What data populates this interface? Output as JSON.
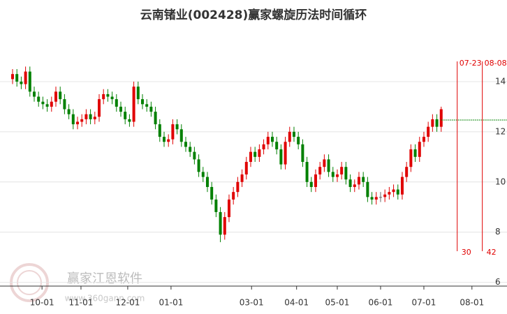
{
  "chart_data": {
    "type": "candlestick",
    "title": "云南锗业(002428)赢家螺旋历法时间循环",
    "xlim": [
      0,
      114.2
    ],
    "ylim": [
      5.85,
      15.0
    ],
    "yticks": [
      6,
      8,
      10,
      12,
      14
    ],
    "xticks": [
      {
        "value": 6.8,
        "label": "10-01"
      },
      {
        "value": 15.8,
        "label": "11-01"
      },
      {
        "value": 26.6,
        "label": "12-01"
      },
      {
        "value": 36.6,
        "label": "01-01"
      },
      {
        "value": 55.2,
        "label": "03-01"
      },
      {
        "value": 65.6,
        "label": "04-01"
      },
      {
        "value": 75,
        "label": "05-01"
      },
      {
        "value": 85,
        "label": "06-01"
      },
      {
        "value": 95,
        "label": "07-01"
      },
      {
        "value": 106.1,
        "label": "08-01"
      }
    ],
    "grid": true,
    "up_color": "#e00000",
    "down_color": "#008000",
    "open": [
      14.1,
      14.3,
      14.0,
      13.9,
      14.4,
      13.6,
      13.4,
      13.2,
      13.1,
      13.0,
      13.2,
      13.6,
      13.3,
      12.9,
      12.7,
      12.3,
      12.4,
      12.5,
      12.7,
      12.5,
      12.6,
      13.3,
      13.5,
      13.4,
      13.3,
      13.0,
      12.8,
      12.5,
      12.4,
      13.8,
      13.3,
      13.1,
      13.0,
      12.8,
      12.3,
      11.8,
      11.6,
      11.7,
      12.3,
      12.1,
      11.6,
      11.4,
      11.2,
      10.9,
      10.4,
      10.2,
      9.8,
      9.3,
      8.8,
      7.9,
      8.6,
      9.3,
      9.6,
      10.0,
      10.3,
      10.8,
      11.2,
      11.0,
      11.3,
      11.5,
      11.8,
      11.6,
      11.3,
      10.7,
      11.6,
      12.0,
      11.8,
      11.5,
      10.8,
      10.0,
      9.8,
      10.3,
      10.6,
      10.9,
      10.4,
      10.2,
      10.3,
      10.6,
      10.1,
      9.8,
      9.9,
      10.2,
      10.0,
      9.4,
      9.3,
      9.4,
      9.4,
      9.5,
      9.6,
      9.7,
      9.5,
      10.2,
      10.6,
      11.3,
      11.0,
      11.6,
      11.8,
      12.2,
      12.5,
      12.2
    ],
    "close": [
      14.3,
      14.0,
      13.9,
      14.4,
      13.6,
      13.4,
      13.2,
      13.1,
      13.0,
      13.2,
      13.6,
      13.3,
      12.9,
      12.7,
      12.3,
      12.4,
      12.5,
      12.7,
      12.5,
      12.6,
      13.3,
      13.5,
      13.4,
      13.3,
      13.0,
      12.8,
      12.5,
      12.4,
      13.8,
      13.3,
      13.1,
      13.0,
      12.8,
      12.3,
      11.8,
      11.6,
      11.7,
      12.3,
      12.1,
      11.6,
      11.4,
      11.2,
      10.9,
      10.4,
      10.2,
      9.8,
      9.3,
      8.8,
      7.9,
      8.6,
      9.3,
      9.6,
      10.0,
      10.3,
      10.8,
      11.2,
      11.0,
      11.3,
      11.5,
      11.8,
      11.6,
      11.3,
      10.7,
      11.6,
      12.0,
      11.8,
      11.5,
      10.8,
      10.0,
      9.8,
      10.3,
      10.6,
      10.9,
      10.4,
      10.2,
      10.3,
      10.6,
      10.1,
      9.8,
      9.9,
      10.2,
      10.0,
      9.4,
      9.3,
      9.4,
      9.4,
      9.5,
      9.6,
      9.7,
      9.5,
      10.2,
      10.6,
      11.3,
      11.0,
      11.6,
      11.8,
      12.2,
      12.5,
      12.2,
      12.9
    ],
    "high": [
      14.5,
      14.5,
      14.2,
      14.6,
      14.6,
      13.8,
      13.6,
      13.4,
      13.3,
      13.4,
      13.8,
      13.8,
      13.5,
      13.1,
      12.9,
      12.6,
      12.7,
      12.9,
      12.9,
      12.8,
      13.5,
      13.7,
      13.7,
      13.6,
      13.5,
      13.2,
      13.0,
      12.7,
      14.0,
      14.0,
      13.5,
      13.3,
      13.2,
      13.0,
      12.5,
      12.0,
      11.9,
      12.5,
      12.5,
      12.3,
      11.8,
      11.6,
      11.4,
      11.1,
      10.6,
      10.4,
      10.0,
      9.5,
      9.0,
      8.8,
      9.5,
      9.8,
      10.2,
      10.5,
      11.0,
      11.4,
      11.4,
      11.5,
      11.7,
      12.0,
      12.0,
      11.8,
      11.5,
      11.8,
      12.2,
      12.2,
      12.0,
      11.7,
      11.0,
      10.2,
      10.5,
      10.8,
      11.1,
      11.1,
      10.6,
      10.5,
      10.8,
      10.8,
      10.3,
      10.1,
      10.4,
      10.4,
      10.2,
      9.6,
      9.6,
      9.6,
      9.7,
      9.8,
      9.9,
      9.9,
      10.4,
      10.8,
      11.5,
      11.5,
      11.8,
      12.0,
      12.4,
      12.7,
      12.7,
      13.0
    ],
    "low": [
      13.9,
      13.8,
      13.7,
      13.7,
      13.4,
      13.2,
      13.0,
      12.9,
      12.8,
      12.8,
      13.0,
      13.1,
      12.7,
      12.5,
      12.1,
      12.1,
      12.2,
      12.3,
      12.3,
      12.3,
      12.4,
      13.1,
      13.2,
      13.1,
      12.8,
      12.6,
      12.3,
      12.2,
      12.2,
      13.1,
      12.9,
      12.8,
      12.6,
      12.1,
      11.6,
      11.4,
      11.4,
      11.5,
      11.9,
      11.4,
      11.2,
      11.0,
      10.7,
      10.2,
      10.0,
      9.6,
      9.1,
      8.6,
      7.6,
      7.7,
      8.4,
      9.1,
      9.4,
      9.8,
      10.1,
      10.6,
      10.8,
      10.8,
      11.1,
      11.3,
      11.4,
      11.1,
      10.5,
      10.5,
      11.4,
      11.6,
      11.3,
      10.6,
      9.8,
      9.6,
      9.6,
      10.1,
      10.4,
      10.2,
      10.0,
      10.0,
      10.1,
      9.9,
      9.6,
      9.6,
      9.7,
      9.8,
      9.2,
      9.1,
      9.1,
      9.2,
      9.2,
      9.3,
      9.4,
      9.3,
      9.3,
      10.0,
      10.4,
      10.8,
      10.8,
      11.4,
      11.6,
      12.0,
      12.0,
      12.0
    ],
    "reference_line": 12.47,
    "cycle_lines": [
      {
        "x": 102.7,
        "date": "07-23",
        "count": 30
      },
      {
        "x": 108.5,
        "date": "08-08",
        "count": 42
      }
    ],
    "watermark": {
      "name": "赢家江恩软件",
      "url": "www.360gann.com"
    }
  }
}
